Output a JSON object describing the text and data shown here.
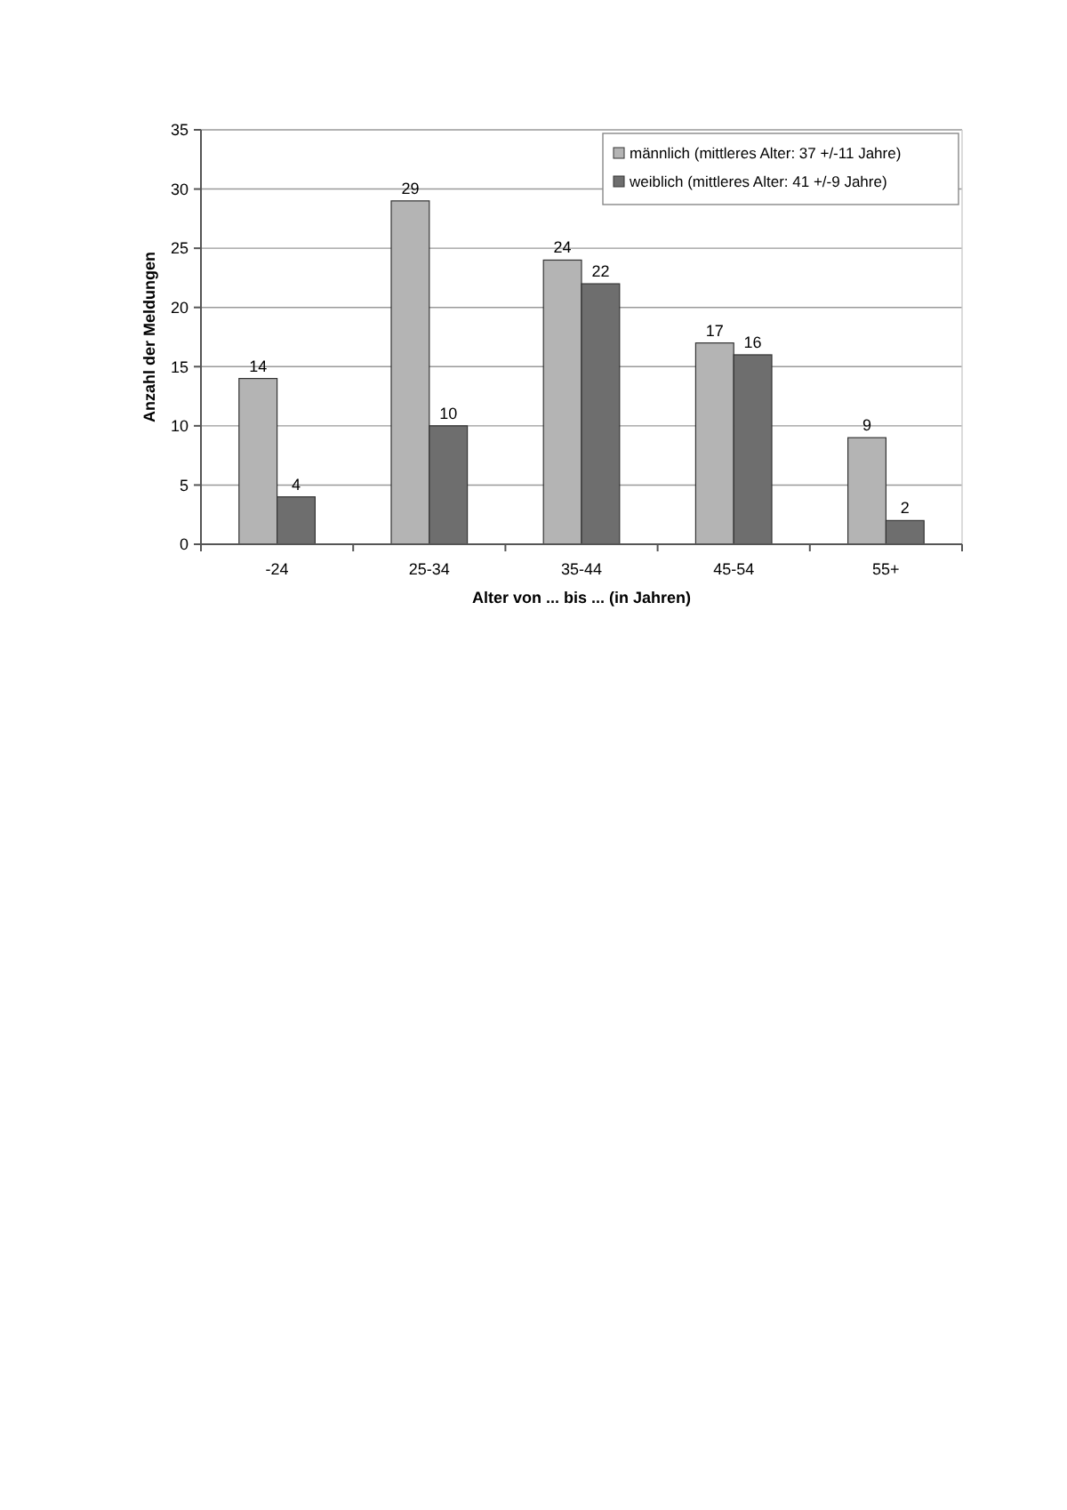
{
  "chart_data": {
    "type": "bar",
    "xlabel": "Alter von ... bis ... (in Jahren)",
    "ylabel": "Anzahl der Meldungen",
    "categories": [
      "-24",
      "25-34",
      "35-44",
      "45-54",
      "55+"
    ],
    "series": [
      {
        "name": "männlich (mittleres Alter: 37 +/-11 Jahre)",
        "color": "#b4b4b4",
        "values": [
          14,
          29,
          24,
          17,
          9
        ]
      },
      {
        "name": "weiblich (mittleres Alter: 41 +/-9 Jahre)",
        "color": "#6e6e6e",
        "values": [
          4,
          10,
          22,
          16,
          2
        ]
      }
    ],
    "ylim": [
      0,
      35
    ],
    "yticks": [
      0,
      5,
      10,
      15,
      20,
      25,
      30,
      35
    ],
    "grid": "y",
    "legend": "top right",
    "data_labels": true
  }
}
